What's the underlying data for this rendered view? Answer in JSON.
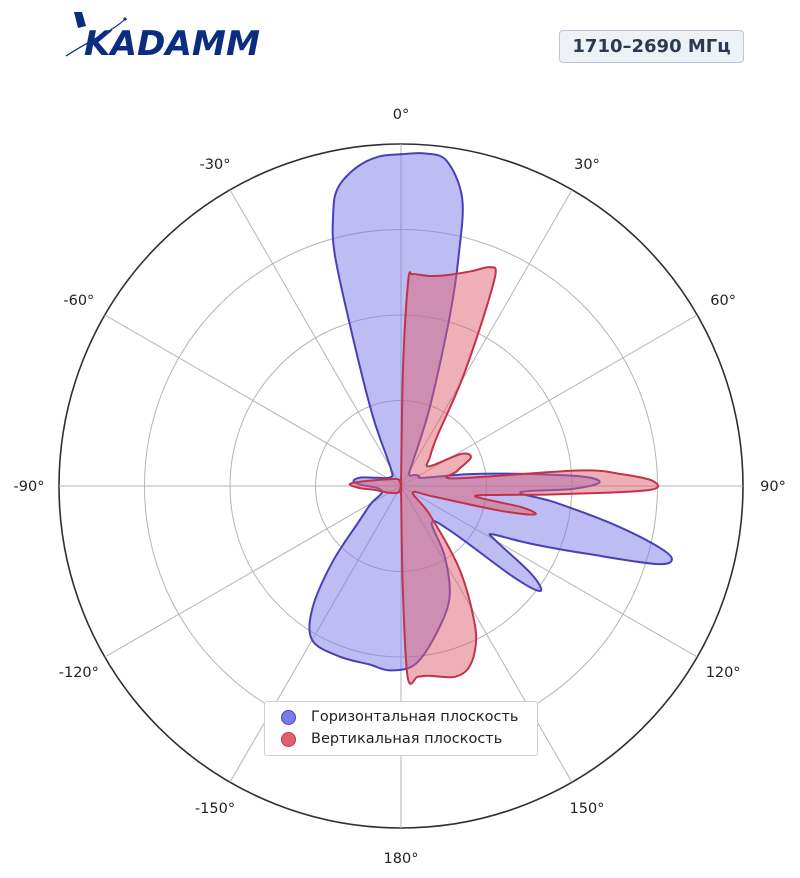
{
  "brand": {
    "logo_text": "KADAMM",
    "primary_color": "#0b2d80"
  },
  "band_label": "1710–2690 МГц",
  "chart_data": {
    "type": "polar-area",
    "angle_unit": "degrees",
    "angle_zero": "top",
    "direction": "clockwise",
    "angular_tick_labels": [
      "0°",
      "30°",
      "60°",
      "90°",
      "120°",
      "150°",
      "180°",
      "-150°",
      "-120°",
      "-90°",
      "-60°",
      "-30°"
    ],
    "radial_grid_levels": [
      0.25,
      0.5,
      0.75,
      1.0
    ],
    "radial_range": [
      0,
      1
    ],
    "legend_position": "bottom-center",
    "series": [
      {
        "name": "Горизонтальная плоскость",
        "color": "#7b7be8",
        "edge_color": "#4a3fb8",
        "points": [
          [
            0,
            0.97
          ],
          [
            4,
            0.975
          ],
          [
            8,
            0.96
          ],
          [
            12,
            0.86
          ],
          [
            14,
            0.7
          ],
          [
            16,
            0.52
          ],
          [
            20,
            0.25
          ],
          [
            25,
            0.09
          ],
          [
            30,
            0.05
          ],
          [
            40,
            0.04
          ],
          [
            50,
            0.05
          ],
          [
            60,
            0.06
          ],
          [
            70,
            0.07
          ],
          [
            80,
            0.2
          ],
          [
            84,
            0.34
          ],
          [
            87,
            0.53
          ],
          [
            89,
            0.58
          ],
          [
            91,
            0.5
          ],
          [
            93,
            0.35
          ],
          [
            96,
            0.45
          ],
          [
            100,
            0.62
          ],
          [
            103,
            0.76
          ],
          [
            105,
            0.82
          ],
          [
            107,
            0.78
          ],
          [
            110,
            0.58
          ],
          [
            113,
            0.45
          ],
          [
            115,
            0.38
          ],
          [
            118,
            0.3
          ],
          [
            120,
            0.32
          ],
          [
            124,
            0.46
          ],
          [
            127,
            0.51
          ],
          [
            129,
            0.42
          ],
          [
            132,
            0.2
          ],
          [
            140,
            0.14
          ],
          [
            148,
            0.24
          ],
          [
            156,
            0.35
          ],
          [
            165,
            0.43
          ],
          [
            175,
            0.52
          ],
          [
            183,
            0.54
          ],
          [
            190,
            0.53
          ],
          [
            200,
            0.53
          ],
          [
            210,
            0.52
          ],
          [
            216,
            0.44
          ],
          [
            222,
            0.3
          ],
          [
            230,
            0.16
          ],
          [
            240,
            0.1
          ],
          [
            250,
            0.06
          ],
          [
            265,
            0.07
          ],
          [
            272,
            0.12
          ],
          [
            276,
            0.14
          ],
          [
            282,
            0.12
          ],
          [
            290,
            0.07
          ],
          [
            310,
            0.04
          ],
          [
            330,
            0.06
          ],
          [
            338,
            0.22
          ],
          [
            342,
            0.45
          ],
          [
            344,
            0.7
          ],
          [
            346,
            0.82
          ],
          [
            348,
            0.89
          ],
          [
            352,
            0.94
          ],
          [
            356,
            0.965
          ],
          [
            360,
            0.97
          ]
        ]
      },
      {
        "name": "Вертикальная плоскость",
        "color": "#e06070",
        "edge_color": "#c0334a",
        "points": [
          [
            0,
            0.0
          ],
          [
            1,
            0.35
          ],
          [
            2,
            0.6
          ],
          [
            3,
            0.62
          ],
          [
            5,
            0.62
          ],
          [
            8,
            0.62
          ],
          [
            12,
            0.63
          ],
          [
            18,
            0.66
          ],
          [
            22,
            0.69
          ],
          [
            24,
            0.68
          ],
          [
            26,
            0.55
          ],
          [
            30,
            0.35
          ],
          [
            36,
            0.18
          ],
          [
            45,
            0.12
          ],
          [
            55,
            0.1
          ],
          [
            62,
            0.2
          ],
          [
            68,
            0.22
          ],
          [
            75,
            0.17
          ],
          [
            82,
            0.16
          ],
          [
            85,
            0.52
          ],
          [
            87,
            0.65
          ],
          [
            89,
            0.74
          ],
          [
            91,
            0.72
          ],
          [
            93,
            0.46
          ],
          [
            95,
            0.3
          ],
          [
            98,
            0.22
          ],
          [
            100,
            0.36
          ],
          [
            102,
            0.4
          ],
          [
            104,
            0.3
          ],
          [
            108,
            0.1
          ],
          [
            120,
            0.04
          ],
          [
            135,
            0.12
          ],
          [
            145,
            0.3
          ],
          [
            152,
            0.46
          ],
          [
            156,
            0.53
          ],
          [
            160,
            0.57
          ],
          [
            164,
            0.58
          ],
          [
            168,
            0.57
          ],
          [
            172,
            0.56
          ],
          [
            175,
            0.56
          ],
          [
            178,
            0.56
          ],
          [
            179,
            0.3
          ],
          [
            180,
            0.0
          ],
          [
            183,
            0.0
          ],
          [
            200,
            0.02
          ],
          [
            240,
            0.04
          ],
          [
            262,
            0.08
          ],
          [
            267,
            0.12
          ],
          [
            272,
            0.15
          ],
          [
            276,
            0.12
          ],
          [
            282,
            0.08
          ],
          [
            300,
            0.04
          ],
          [
            340,
            0.02
          ],
          [
            360,
            0.0
          ]
        ]
      }
    ]
  }
}
